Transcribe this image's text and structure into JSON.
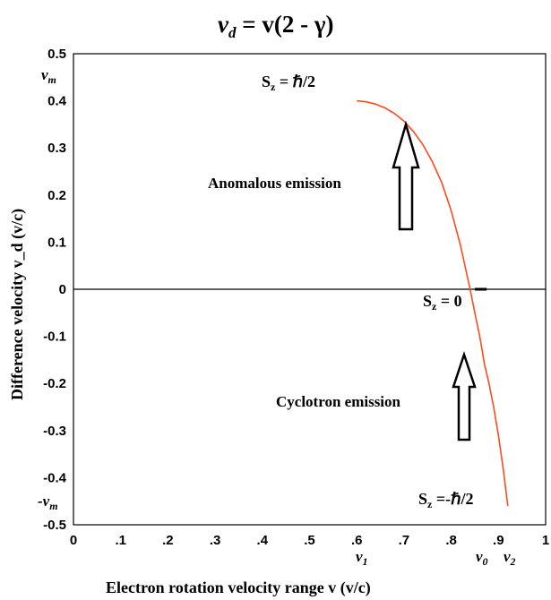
{
  "chart_data": {
    "type": "line",
    "title_lhs": "v",
    "title_lhs_sub": "d",
    "title_rhs": " = v(2 - γ)",
    "xlabel": "Electron rotation velocity range  v (v/c)",
    "ylabel": "Difference velocity v_d (v/c)",
    "xlim": [
      0,
      1
    ],
    "ylim": [
      -0.5,
      0.5
    ],
    "x_ticks": [
      "0",
      ".1",
      ".2",
      ".3",
      ".4",
      ".5",
      ".6",
      ".7",
      ".8",
      ".9",
      "1"
    ],
    "y_ticks": [
      "0.5",
      "0.4",
      "0.3",
      "0.2",
      "0.1",
      "0",
      "-0.1",
      "-0.2",
      "-0.3",
      "-0.4",
      "-0.5"
    ],
    "y_tick_values": [
      0.5,
      0.4,
      0.3,
      0.2,
      0.1,
      0,
      -0.1,
      -0.2,
      -0.3,
      -0.4,
      -0.5
    ],
    "series": [
      {
        "color": "#ff4a1c",
        "x": [
          0.6,
          0.62,
          0.64,
          0.66,
          0.68,
          0.7,
          0.72,
          0.74,
          0.76,
          0.78,
          0.8,
          0.82,
          0.84,
          0.85,
          0.86,
          0.866,
          0.87,
          0.88,
          0.89,
          0.9,
          0.91,
          0.92
        ],
        "y": [
          0.4,
          0.398,
          0.393,
          0.385,
          0.373,
          0.357,
          0.335,
          0.307,
          0.271,
          0.226,
          0.167,
          0.092,
          0.0,
          -0.05,
          -0.098,
          -0.132,
          -0.157,
          -0.2,
          -0.25,
          -0.31,
          -0.38,
          -0.46
        ]
      }
    ],
    "zero_marker": {
      "x": [
        0.85,
        0.875
      ],
      "y": 0
    },
    "annotations": {
      "vm_top": "v",
      "vm_sub": "m",
      "vm_bottom": "-v",
      "v1": "v",
      "v1_sub": "1",
      "v0": "v",
      "v0_sub": "0",
      "v2": "v",
      "v2_sub": "2",
      "sz_top": "S",
      "sz_top_rhs": " = ℏ/2",
      "sz_zero": "S",
      "sz_zero_rhs": " = 0",
      "sz_bottom": "S",
      "sz_bottom_rhs": " =-ℏ/2",
      "sz_sub": "z",
      "anomalous": "Anomalous emission",
      "cyclotron": "Cyclotron emission"
    }
  }
}
